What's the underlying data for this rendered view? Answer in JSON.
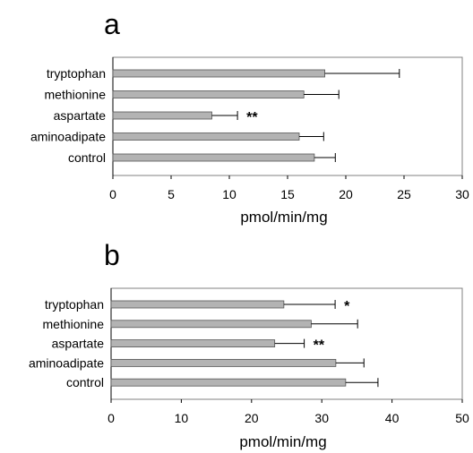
{
  "chart_data": [
    {
      "panel": "a",
      "type": "bar",
      "orientation": "horizontal",
      "categories": [
        "tryptophan",
        "methionine",
        "aspartate",
        "aminoadipate",
        "control"
      ],
      "values": [
        18.2,
        16.4,
        8.5,
        16.0,
        17.3
      ],
      "errors": [
        6.4,
        3.0,
        2.2,
        2.1,
        1.8
      ],
      "significance": [
        "",
        "",
        "**",
        "",
        ""
      ],
      "xlabel": "pmol/min/mg",
      "xlim": [
        0,
        30
      ],
      "xticks": [
        0,
        5,
        10,
        15,
        20,
        25,
        30
      ],
      "grid": false,
      "legend": "none"
    },
    {
      "panel": "b",
      "type": "bar",
      "orientation": "horizontal",
      "categories": [
        "tryptophan",
        "methionine",
        "aspartate",
        "aminoadipate",
        "control"
      ],
      "values": [
        24.6,
        28.5,
        23.3,
        32.0,
        33.4
      ],
      "errors": [
        7.3,
        6.6,
        4.2,
        4.0,
        4.6
      ],
      "significance": [
        "*",
        "",
        "**",
        "",
        ""
      ],
      "xlabel": "pmol/min/mg",
      "xlim": [
        0,
        50
      ],
      "xticks": [
        0,
        10,
        20,
        30,
        40,
        50
      ],
      "grid": false,
      "legend": "none"
    }
  ]
}
